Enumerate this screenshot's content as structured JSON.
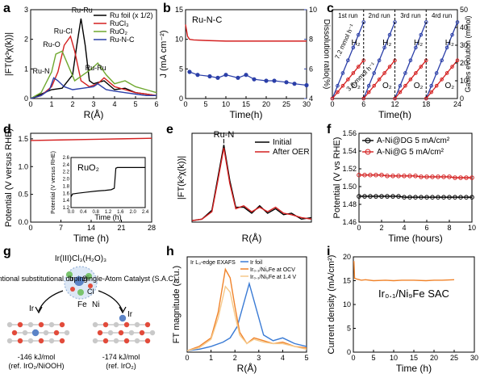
{
  "chart_data": [
    {
      "panel": "a",
      "type": "line",
      "xlabel": "R(Å)",
      "ylabel": "|FT(k³χ(k))|",
      "xlim": [
        0,
        6
      ],
      "ylim": [
        0,
        3
      ],
      "x_ticks": [
        "0",
        "1",
        "2",
        "3",
        "4",
        "5",
        "6"
      ],
      "y_ticks": [
        "0",
        "1",
        "2",
        "3"
      ],
      "legend_position": "top-right",
      "annotations": [
        "Ru-Ru",
        "Ru-Cl",
        "Ru-O",
        "Ru-N",
        "Ru-Ru"
      ],
      "series": [
        {
          "name": "Ru foil (x 1/2)",
          "color": "#000000",
          "x": [
            0,
            0.5,
            1,
            1.5,
            2,
            2.2,
            2.4,
            2.6,
            2.8,
            3,
            3.5,
            4,
            4.5,
            5,
            5.5,
            6
          ],
          "values": [
            0,
            0.15,
            0.3,
            0.35,
            0.8,
            1.8,
            2.7,
            1.8,
            0.6,
            0.5,
            0.6,
            0.3,
            0.35,
            0.2,
            0.15,
            0.1
          ]
        },
        {
          "name": "RuCl₃",
          "color": "#d42020",
          "x": [
            0,
            0.5,
            1,
            1.3,
            1.6,
            1.9,
            2.1,
            2.4,
            2.8,
            3.2,
            3.5,
            4,
            4.5,
            5,
            5.5,
            6
          ],
          "values": [
            0,
            0.1,
            0.4,
            0.9,
            1.8,
            2.1,
            1.6,
            0.6,
            0.4,
            0.5,
            0.7,
            0.4,
            0.3,
            0.2,
            0.15,
            0.1
          ]
        },
        {
          "name": "RuO₂",
          "color": "#6fa82f",
          "x": [
            0,
            0.5,
            1,
            1.2,
            1.5,
            1.8,
            2.1,
            2.5,
            2.9,
            3.2,
            3.6,
            4,
            4.5,
            5,
            5.5,
            6
          ],
          "values": [
            0,
            0.2,
            0.9,
            1.5,
            1.6,
            1.1,
            0.6,
            0.8,
            1.0,
            1.2,
            0.8,
            0.5,
            0.6,
            0.4,
            0.3,
            0.2
          ]
        },
        {
          "name": "Ru-N-C",
          "color": "#2b3fa8",
          "x": [
            0,
            0.5,
            0.9,
            1.1,
            1.3,
            1.6,
            2,
            2.5,
            3,
            3.2,
            3.6,
            4,
            4.5,
            5,
            5.5,
            6
          ],
          "values": [
            0,
            0.1,
            0.3,
            0.7,
            0.6,
            0.4,
            0.3,
            0.35,
            0.4,
            0.5,
            0.3,
            0.25,
            0.2,
            0.15,
            0.1,
            0.1
          ]
        }
      ]
    },
    {
      "panel": "b",
      "type": "line",
      "title": "Ru-N-C",
      "xlabel": "Time(h)",
      "ylabel": "J (mA cm⁻²)",
      "ylabel_right": "Dissolution ratio(%)",
      "xlim": [
        0,
        30
      ],
      "ylim": [
        0,
        15
      ],
      "ylim_right": [
        4,
        10
      ],
      "x_ticks": [
        "0",
        "5",
        "10",
        "15",
        "20",
        "25",
        "30"
      ],
      "y_ticks": [
        "0",
        "5",
        "10",
        "15"
      ],
      "y_ticks_right": [
        "4",
        "6",
        "8",
        "10"
      ],
      "series": [
        {
          "name": "J",
          "color": "#d42020",
          "x": [
            0,
            0.5,
            1,
            2,
            5,
            10,
            15,
            20,
            25,
            30
          ],
          "values": [
            12.5,
            10.5,
            10,
            9.9,
            9.8,
            9.7,
            9.7,
            9.7,
            9.7,
            9.7
          ]
        },
        {
          "name": "Dissolution ratio",
          "color": "#2b3fa8",
          "axis": "right",
          "x": [
            1,
            3,
            6,
            8,
            10,
            13,
            15,
            17,
            20,
            22,
            25,
            27,
            30
          ],
          "values": [
            5.8,
            5.6,
            5.5,
            5.4,
            5.6,
            5.4,
            5.6,
            5.3,
            5.2,
            5.2,
            5.1,
            5.0,
            4.9
          ]
        }
      ]
    },
    {
      "panel": "c",
      "type": "line",
      "xlabel": "Time(h)",
      "ylabel_right": "Gases evolution (mmol)",
      "xlim": [
        0,
        24
      ],
      "ylim": [
        0,
        50
      ],
      "x_ticks": [
        "0",
        "6",
        "12",
        "18",
        "24"
      ],
      "y_ticks_right": [
        "0",
        "10",
        "20",
        "30",
        "40",
        "50"
      ],
      "run_labels": [
        "1st run",
        "2nd run",
        "3rd run",
        "4rd run"
      ],
      "gas_labels": [
        "H₂",
        "O₂"
      ],
      "rate_labels": [
        "7.2 mmol h⁻¹",
        "3.6 mmol h⁻¹"
      ],
      "series": [
        {
          "name": "H₂",
          "color": "#2b3fa8",
          "segments": [
            [
              [
                0,
                0
              ],
              [
                6,
                43
              ]
            ],
            [
              [
                6,
                0
              ],
              [
                12,
                43
              ]
            ],
            [
              [
                12,
                0
              ],
              [
                18,
                43
              ]
            ],
            [
              [
                18,
                0
              ],
              [
                24,
                43
              ]
            ]
          ]
        },
        {
          "name": "O₂",
          "color": "#d42020",
          "segments": [
            [
              [
                0,
                0
              ],
              [
                6,
                21.5
              ]
            ],
            [
              [
                6,
                0
              ],
              [
                12,
                21.5
              ]
            ],
            [
              [
                12,
                0
              ],
              [
                18,
                21.5
              ]
            ],
            [
              [
                18,
                0
              ],
              [
                24,
                21.5
              ]
            ]
          ]
        }
      ]
    },
    {
      "panel": "d",
      "type": "line",
      "xlabel": "Time (h)",
      "ylabel": "Potential (V versus RHE)",
      "xlim": [
        0,
        28
      ],
      "ylim": [
        0,
        1.6
      ],
      "x_ticks": [
        "0",
        "7",
        "14",
        "21",
        "28"
      ],
      "y_ticks": [
        "0.0",
        "0.5",
        "1.0",
        "1.5"
      ],
      "series": [
        {
          "name": "main",
          "color": "#d42020",
          "x": [
            0,
            7,
            14,
            21,
            28
          ],
          "values": [
            1.47,
            1.48,
            1.49,
            1.5,
            1.51
          ]
        }
      ],
      "inset": {
        "title": "RuO₂",
        "xlabel": "Time (h)",
        "ylabel": "Potential (V versus RHE)",
        "xlim": [
          0,
          2.4
        ],
        "ylim": [
          1.2,
          2.6
        ],
        "x_ticks": [
          "0.0",
          "0.4",
          "0.8",
          "1.2",
          "1.6",
          "2.0",
          "2.4"
        ],
        "y_ticks": [
          "1.2",
          "1.4",
          "1.6",
          "1.8",
          "2.0",
          "2.2",
          "2.4",
          "2.6"
        ],
        "x": [
          0,
          0.05,
          0.2,
          0.5,
          0.8,
          1.1,
          1.3,
          1.4,
          1.45,
          1.5,
          1.8,
          2.1,
          2.4
        ],
        "values": [
          1.5,
          1.58,
          1.6,
          1.63,
          1.66,
          1.68,
          1.7,
          1.74,
          2.3,
          2.32,
          2.32,
          2.32,
          2.32
        ]
      }
    },
    {
      "panel": "e",
      "type": "line",
      "xlabel": "R(Å)",
      "ylabel": "|FT(k²χ(k))|",
      "xlim": [
        0,
        6
      ],
      "annotations": [
        "Ru-N"
      ],
      "legend_position": "top-right",
      "series": [
        {
          "name": "Initial",
          "color": "#000000",
          "x": [
            0,
            0.5,
            1,
            1.3,
            1.6,
            1.9,
            2.2,
            2.6,
            3,
            3.4,
            3.8,
            4.2,
            4.6,
            5,
            5.5,
            6
          ],
          "values": [
            0.05,
            0.1,
            0.4,
            1.5,
            2.6,
            1.4,
            0.5,
            0.5,
            0.3,
            0.55,
            0.3,
            0.45,
            0.25,
            0.3,
            0.1,
            0.15
          ]
        },
        {
          "name": "After OER",
          "color": "#d42020",
          "x": [
            0,
            0.5,
            1,
            1.3,
            1.6,
            1.9,
            2.2,
            2.6,
            3,
            3.4,
            3.8,
            4.2,
            4.6,
            5,
            5.5,
            6
          ],
          "values": [
            0.05,
            0.1,
            0.35,
            1.4,
            2.5,
            1.3,
            0.45,
            0.55,
            0.35,
            0.5,
            0.35,
            0.5,
            0.3,
            0.25,
            0.15,
            0.1
          ]
        }
      ]
    },
    {
      "panel": "f",
      "type": "line",
      "xlabel": "Time (hours)",
      "ylabel": "Potential (V vs RHE)",
      "xlim": [
        0,
        10
      ],
      "ylim": [
        1.46,
        1.56
      ],
      "x_ticks": [
        "0",
        "2",
        "4",
        "6",
        "8",
        "10"
      ],
      "y_ticks": [
        "1.46",
        "1.48",
        "1.50",
        "1.52",
        "1.54",
        "1.56"
      ],
      "legend_position": "top-left",
      "series": [
        {
          "name": "A-Ni@DG 5 mA/cm²",
          "color": "#000000",
          "x": [
            0,
            0.5,
            1,
            1.5,
            2,
            2.5,
            3,
            3.5,
            4,
            4.5,
            5,
            5.5,
            6,
            6.5,
            7,
            7.5,
            8,
            8.5,
            9,
            9.5,
            10
          ],
          "values": [
            1.489,
            1.489,
            1.489,
            1.489,
            1.489,
            1.489,
            1.489,
            1.489,
            1.488,
            1.488,
            1.488,
            1.488,
            1.488,
            1.488,
            1.488,
            1.488,
            1.488,
            1.488,
            1.488,
            1.488,
            1.488
          ]
        },
        {
          "name": "A-Ni@G 5 mA/cm²",
          "color": "#d42020",
          "x": [
            0,
            0.5,
            1,
            1.5,
            2,
            2.5,
            3,
            3.5,
            4,
            4.5,
            5,
            5.5,
            6,
            6.5,
            7,
            7.5,
            8,
            8.5,
            9,
            9.5,
            10
          ],
          "values": [
            1.513,
            1.513,
            1.513,
            1.513,
            1.513,
            1.512,
            1.512,
            1.512,
            1.512,
            1.512,
            1.512,
            1.511,
            1.511,
            1.511,
            1.511,
            1.511,
            1.511,
            1.51,
            1.51,
            1.51,
            1.51
          ]
        }
      ]
    },
    {
      "panel": "h",
      "type": "line",
      "xlabel": "R(Å)",
      "ylabel": "FT magnitude (a.u.)",
      "title": "Ir L₃-edge EXAFS",
      "xlim": [
        0,
        5
      ],
      "x_ticks": [
        "0",
        "1",
        "2",
        "3",
        "4",
        "5"
      ],
      "legend_position": "top-right",
      "series": [
        {
          "name": "Ir foil",
          "color": "#3a7bd5",
          "x": [
            0,
            0.5,
            1,
            1.5,
            1.8,
            2.1,
            2.4,
            2.6,
            2.9,
            3.2,
            3.6,
            4,
            4.5,
            5
          ],
          "values": [
            0.05,
            0.1,
            0.2,
            0.35,
            0.5,
            0.9,
            1.8,
            2.4,
            1.5,
            0.6,
            0.4,
            0.5,
            0.3,
            0.2
          ]
        },
        {
          "name": "Ir₀.₁/Ni₉Fe at OCV",
          "color": "#f0832a",
          "x": [
            0,
            0.5,
            1,
            1.3,
            1.6,
            1.8,
            2,
            2.2,
            2.5,
            2.8,
            3.2,
            3.6,
            4,
            4.5,
            5
          ],
          "values": [
            0.05,
            0.2,
            0.5,
            1.4,
            2.9,
            2.6,
            1.6,
            0.7,
            0.3,
            0.5,
            0.4,
            0.3,
            0.35,
            0.2,
            0.15
          ]
        },
        {
          "name": "Ir₀.₁/Ni₉Fe at 1.4 V",
          "color": "#f6c98a",
          "x": [
            0,
            0.5,
            1,
            1.3,
            1.6,
            1.8,
            2,
            2.2,
            2.5,
            2.8,
            3.2,
            3.6,
            4,
            4.5,
            5
          ],
          "values": [
            0.05,
            0.15,
            0.45,
            1.2,
            2.3,
            2.1,
            1.3,
            0.6,
            0.3,
            0.45,
            0.35,
            0.3,
            0.3,
            0.2,
            0.1
          ]
        }
      ]
    },
    {
      "panel": "i",
      "type": "line",
      "title": "Ir₀.₁/Ni₉Fe SAC",
      "xlabel": "Time (h)",
      "ylabel": "Current density (mA/cm²)",
      "xlim": [
        0,
        30
      ],
      "ylim": [
        0,
        20
      ],
      "x_ticks": [
        "0",
        "5",
        "10",
        "15",
        "20",
        "25",
        "30"
      ],
      "y_ticks": [
        "0",
        "5",
        "10",
        "15",
        "20"
      ],
      "series": [
        {
          "name": "current",
          "color": "#f0832a",
          "x": [
            0,
            0.15,
            0.3,
            1,
            2,
            3,
            5,
            8,
            10,
            12,
            15,
            18,
            20,
            22,
            25
          ],
          "values": [
            19,
            19,
            15.5,
            15.3,
            15.1,
            15.2,
            15,
            15.1,
            15,
            15.1,
            15.1,
            15,
            15.1,
            15.1,
            15.2
          ]
        }
      ]
    }
  ],
  "panel_g": {
    "center_label": "Ir(III)Cl₃(H₂O)₃",
    "left_title": "Conventional substitutional doping",
    "right_title": "Single-Atom Catalyst (S.A.C)",
    "center_atom_labels": [
      "Ir",
      "Cl"
    ],
    "left_atom_label": "Ir",
    "right_labels": [
      "Fe",
      "Ni",
      "Ir"
    ],
    "left_energy": "-146 kJ/mol",
    "left_ref": "(ref. IrO₂/NiOOH)",
    "right_energy": "-174 kJ/mol",
    "right_ref": "(ref. IrO₂)"
  },
  "panel_letters": [
    "a",
    "b",
    "c",
    "d",
    "e",
    "f",
    "g",
    "h",
    "i"
  ]
}
